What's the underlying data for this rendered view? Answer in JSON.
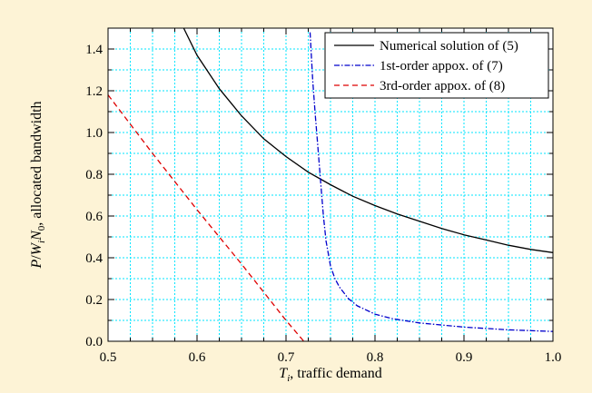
{
  "chart_data": {
    "type": "line",
    "xlabel_var": "T",
    "xlabel_sub": "i",
    "xlabel_rest": ", traffic demand",
    "ylabel_parts": [
      "P",
      "/",
      "W",
      "i",
      "N",
      "0",
      ", allocated bandwidth"
    ],
    "xlim": [
      0.5,
      1.0
    ],
    "ylim": [
      0.0,
      1.5
    ],
    "xticks": [
      0.5,
      0.6,
      0.7,
      0.8,
      0.9,
      1.0
    ],
    "xtick_labels": [
      "0.5",
      "0.6",
      "0.7",
      "0.8",
      "0.9",
      "1.0"
    ],
    "yticks": [
      0.0,
      0.2,
      0.4,
      0.6,
      0.8,
      1.0,
      1.2,
      1.4
    ],
    "ytick_labels": [
      "0.0",
      "0.2",
      "0.4",
      "0.6",
      "0.8",
      "1.0",
      "1.2",
      "1.4"
    ],
    "grid": true,
    "legend_position": "top-right",
    "series": [
      {
        "name": "Numerical solution of (5)",
        "color": "#000000",
        "style": "solid",
        "x": [
          0.585,
          0.6,
          0.625,
          0.65,
          0.675,
          0.7,
          0.725,
          0.75,
          0.775,
          0.8,
          0.825,
          0.85,
          0.875,
          0.9,
          0.925,
          0.95,
          0.975,
          1.0,
          1.005
        ],
        "y": [
          1.5,
          1.37,
          1.21,
          1.08,
          0.97,
          0.885,
          0.81,
          0.75,
          0.695,
          0.65,
          0.61,
          0.575,
          0.54,
          0.51,
          0.485,
          0.46,
          0.44,
          0.425,
          0.42
        ]
      },
      {
        "name": "1st-order appox. of (7)",
        "color": "#0000cc",
        "style": "dashdot",
        "x": [
          0.727,
          0.73,
          0.733,
          0.736,
          0.739,
          0.742,
          0.745,
          0.75,
          0.755,
          0.76,
          0.77,
          0.78,
          0.8,
          0.82,
          0.85,
          0.9,
          0.95,
          1.0,
          1.005
        ],
        "y": [
          1.48,
          1.25,
          1.08,
          0.92,
          0.76,
          0.6,
          0.48,
          0.36,
          0.3,
          0.26,
          0.205,
          0.17,
          0.13,
          0.108,
          0.088,
          0.068,
          0.055,
          0.047,
          0.046
        ]
      },
      {
        "name": "3rd-order appox. of (8)",
        "color": "#dd0000",
        "style": "dashed",
        "x": [
          0.5,
          0.55,
          0.6,
          0.65,
          0.7,
          0.72
        ],
        "y": [
          1.18,
          0.9,
          0.63,
          0.37,
          0.1,
          0.0
        ]
      }
    ]
  }
}
